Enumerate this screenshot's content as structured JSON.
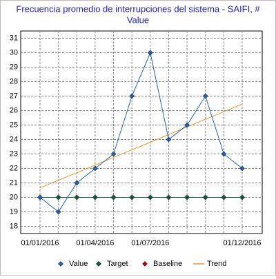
{
  "chart_data": {
    "type": "line",
    "title": "Frecuencia promedio de interrupciones del sistema - SAIFI, #",
    "subtitle": "Value",
    "categories": [
      "01/01/2016",
      null,
      null,
      "01/04/2016",
      null,
      null,
      "01/07/2016",
      null,
      null,
      null,
      null,
      "01/12/2016"
    ],
    "series": [
      {
        "name": "Value",
        "color": "#1f5fbf",
        "marker": "diamond",
        "values": [
          20,
          19,
          21,
          22,
          23,
          27,
          30,
          24,
          25,
          27,
          23,
          22
        ]
      },
      {
        "name": "Target",
        "color": "#0b5a3a",
        "marker": "diamond",
        "values": [
          20,
          20,
          20,
          20,
          20,
          20,
          20,
          20,
          20,
          20,
          20,
          20
        ]
      },
      {
        "name": "Baseline",
        "color": "#c00000",
        "marker": "diamond",
        "values": [
          20,
          20,
          20,
          20,
          20,
          20,
          20,
          20,
          20,
          20,
          20,
          20
        ]
      },
      {
        "name": "Trend",
        "color": "#e8962a",
        "marker": "none",
        "values": [
          20.65,
          21.18,
          21.7,
          22.23,
          22.76,
          23.29,
          23.81,
          24.34,
          24.87,
          25.4,
          25.92,
          26.45
        ]
      }
    ],
    "ylim": [
      17.5,
      31.5
    ],
    "yticks": [
      18,
      19,
      20,
      21,
      22,
      23,
      24,
      25,
      26,
      27,
      28,
      29,
      30,
      31
    ],
    "grid": true,
    "legend": "bottom"
  }
}
